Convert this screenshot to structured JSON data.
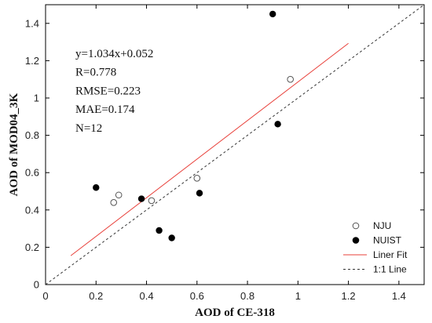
{
  "chart_data": {
    "type": "scatter",
    "xlabel": "AOD of CE-318",
    "ylabel": "AOD of MOD04_3K",
    "xlim": [
      0,
      1.5
    ],
    "ylim": [
      0,
      1.5
    ],
    "xticks": [
      "0",
      "0.2",
      "0.4",
      "0.6",
      "0.8",
      "1",
      "1.2",
      "1.4"
    ],
    "yticks": [
      "0",
      "0.2",
      "0.4",
      "0.6",
      "0.8",
      "1",
      "1.2",
      "1.4"
    ],
    "grid": false,
    "legend_position": "bottom-right",
    "stats": [
      "y=1.034x+0.052",
      "R=0.778",
      "RMSE=0.223",
      "MAE=0.174",
      "N=12"
    ],
    "series": [
      {
        "name": "NJU",
        "marker": "open-circle",
        "color": "#555555",
        "points": [
          {
            "x": 0.27,
            "y": 0.44
          },
          {
            "x": 0.29,
            "y": 0.48
          },
          {
            "x": 0.42,
            "y": 0.45
          },
          {
            "x": 0.6,
            "y": 0.57
          },
          {
            "x": 0.97,
            "y": 1.1
          }
        ]
      },
      {
        "name": "NUIST",
        "marker": "filled-circle",
        "color": "#000000",
        "points": [
          {
            "x": 0.2,
            "y": 0.52
          },
          {
            "x": 0.38,
            "y": 0.46
          },
          {
            "x": 0.45,
            "y": 0.29
          },
          {
            "x": 0.5,
            "y": 0.25
          },
          {
            "x": 0.61,
            "y": 0.49
          },
          {
            "x": 0.9,
            "y": 1.45
          },
          {
            "x": 0.92,
            "y": 0.86
          }
        ]
      }
    ],
    "lines": [
      {
        "name": "Liner Fit",
        "color": "#e8403a",
        "style": "solid",
        "x": [
          0.1,
          1.2
        ],
        "y": [
          0.155,
          1.293
        ]
      },
      {
        "name": "1:1 Line",
        "color": "#333333",
        "style": "dashed",
        "x": [
          0,
          1.5
        ],
        "y": [
          0,
          1.5
        ]
      }
    ]
  }
}
